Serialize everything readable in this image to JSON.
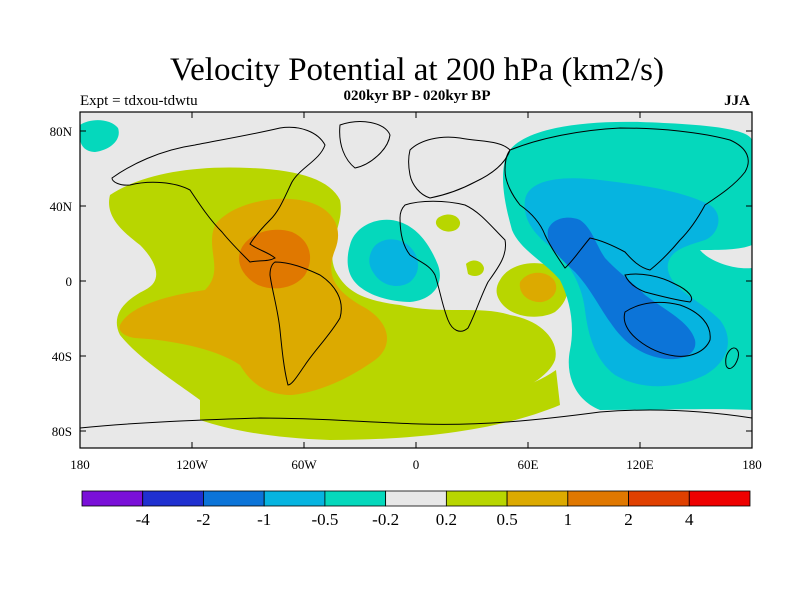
{
  "header": {
    "title": "Velocity Potential at 200 hPa (km2/s)",
    "subtitle": "020kyr BP - 020kyr BP",
    "left_label": "Expt = tdxou-tdwtu",
    "right_label": "JJA"
  },
  "axes": {
    "lat_ticks": [
      "80N",
      "40N",
      "0",
      "40S",
      "80S"
    ],
    "lon_ticks": [
      "180",
      "120W",
      "60W",
      "0",
      "60E",
      "120E",
      "180"
    ]
  },
  "colorbar": {
    "colors": [
      "#7a10d8",
      "#2030d0",
      "#0c74d8",
      "#06b4e0",
      "#05d8bc",
      "#e8e8e8",
      "#b8d600",
      "#dcaa00",
      "#e07800",
      "#e04000",
      "#ee0000"
    ],
    "labels": [
      "-4",
      "-2",
      "-1",
      "-0.5",
      "-0.2",
      "0.2",
      "0.5",
      "1",
      "2",
      "4"
    ]
  },
  "map_colors": {
    "background": "#e8e8e8",
    "weak_positive": "#b8d600",
    "moderate_positive": "#dcaa00",
    "strong_positive": "#e07800",
    "weak_negative": "#05d8bc",
    "moderate_negative": "#06b4e0",
    "strong_negative": "#0c74d8"
  }
}
